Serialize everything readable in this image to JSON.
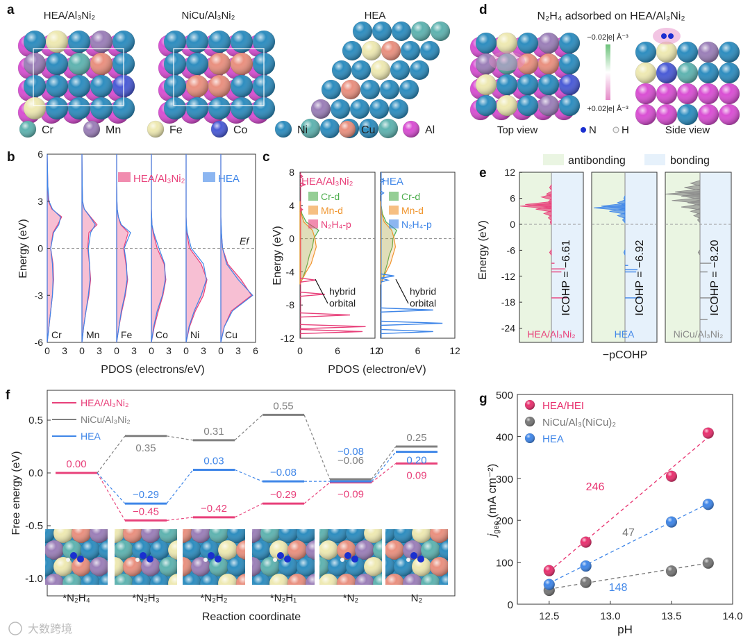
{
  "panel_labels": {
    "a": "a",
    "b": "b",
    "c": "c",
    "d": "d",
    "e": "e",
    "f": "f",
    "g": "g"
  },
  "panel_a": {
    "titles": [
      "HEA/Al₃Ni₂",
      "NiCu/Al₃Ni₂",
      "HEA"
    ],
    "legend": [
      {
        "label": "Cr",
        "color": "#5fb3b0"
      },
      {
        "label": "Mn",
        "color": "#9b7fb8"
      },
      {
        "label": "Fe",
        "color": "#eee9b2"
      },
      {
        "label": "Co",
        "color": "#4a5bd6"
      },
      {
        "label": "Ni",
        "color": "#2e8dbf"
      },
      {
        "label": "Cu",
        "color": "#e9907f"
      },
      {
        "label": "Al",
        "color": "#d94fd3"
      }
    ]
  },
  "panel_d": {
    "title": "N₂H₄ adsorbed on HEA/Al₃Ni₂",
    "scale_top": "−0.02|e| Å⁻³",
    "scale_bottom": "+0.02|e| Å⁻³",
    "top_view": "Top view",
    "side_view": "Side view",
    "legend": [
      {
        "label": "N",
        "color": "#1a2fd0"
      },
      {
        "label": "H",
        "color": "#f4f4f4"
      }
    ]
  },
  "chart_data": [
    {
      "id": "b",
      "type": "area",
      "ylabel": "Energy (eV)",
      "xlabel": "PDOS (electrons/eV)",
      "ylim": [
        -6,
        6
      ],
      "yticks": [
        "6",
        "3",
        "0",
        "-3",
        "-6"
      ],
      "xlim_per_panel": [
        0,
        6
      ],
      "xticks": [
        "0",
        "3"
      ],
      "xtick_end": "6",
      "fermi_label": "Ef",
      "legend": [
        "HEA/Al₃Ni₂",
        "HEA"
      ],
      "colors": {
        "HEA/Al₃Ni₂": "#e8407a",
        "HEA": "#3f86e8"
      },
      "energies": [
        -6,
        -5,
        -4,
        -3,
        -2,
        -1,
        0,
        1,
        1.5,
        2,
        2.5,
        3,
        4,
        6
      ],
      "panels": [
        {
          "element": "Cr",
          "HEA/Al₃Ni₂": [
            0,
            0.3,
            0.6,
            0.9,
            1.1,
            1.0,
            0.6,
            1.0,
            1.8,
            2.5,
            0.8,
            0.2,
            0.1,
            0
          ],
          "HEA": [
            0,
            0.3,
            0.6,
            0.9,
            1.0,
            0.9,
            0.6,
            1.1,
            2.0,
            2.3,
            0.9,
            0.3,
            0.1,
            0
          ]
        },
        {
          "element": "Mn",
          "HEA/Al₃Ni₂": [
            0,
            0.3,
            0.7,
            1.2,
            1.5,
            1.3,
            1.0,
            1.2,
            2.6,
            1.5,
            0.4,
            0.1,
            0.05,
            0
          ],
          "HEA": [
            0,
            0.3,
            0.7,
            1.1,
            1.4,
            1.3,
            1.1,
            1.5,
            2.3,
            1.4,
            0.4,
            0.1,
            0.05,
            0
          ]
        },
        {
          "element": "Fe",
          "HEA/Al₃Ni₂": [
            0,
            0.4,
            0.9,
            1.5,
            1.9,
            1.6,
            1.2,
            2.0,
            0.7,
            0.3,
            0.1,
            0.05,
            0,
            0
          ],
          "HEA": [
            0,
            0.4,
            0.8,
            1.4,
            1.8,
            1.7,
            1.3,
            2.4,
            0.8,
            0.3,
            0.1,
            0.05,
            0,
            0
          ]
        },
        {
          "element": "Co",
          "HEA/Al₃Ni₂": [
            0,
            0.5,
            1.2,
            2.0,
            2.5,
            2.2,
            1.0,
            0.3,
            0.1,
            0.05,
            0,
            0,
            0,
            0
          ],
          "HEA": [
            0,
            0.4,
            1.0,
            1.9,
            2.4,
            2.3,
            1.3,
            0.4,
            0.1,
            0.05,
            0,
            0,
            0,
            0
          ]
        },
        {
          "element": "Ni",
          "HEA/Al₃Ni₂": [
            0,
            0.6,
            1.6,
            3.0,
            3.6,
            2.6,
            0.6,
            0.1,
            0.05,
            0,
            0,
            0,
            0,
            0
          ],
          "HEA": [
            0,
            0.5,
            1.4,
            2.6,
            3.5,
            3.0,
            0.9,
            0.2,
            0.05,
            0,
            0,
            0,
            0,
            0
          ]
        },
        {
          "element": "Cu",
          "HEA/Al₃Ni₂": [
            0,
            0.6,
            1.8,
            5.3,
            3.5,
            1.2,
            0.3,
            0.1,
            0.05,
            0,
            0,
            0,
            0,
            0
          ],
          "HEA": [
            0,
            0.6,
            2.0,
            5.5,
            3.0,
            1.0,
            0.3,
            0.1,
            0.05,
            0,
            0,
            0,
            0,
            0
          ]
        }
      ]
    },
    {
      "id": "c",
      "type": "line",
      "ylabel": "Energy (eV)",
      "xlabel": "PDOS (electron/eV)",
      "ylim": [
        -12,
        8
      ],
      "yticks": [
        "8",
        "4",
        "0",
        "-4",
        "-8",
        "-12"
      ],
      "xlim": [
        0,
        12
      ],
      "xticks": [
        "0",
        "6",
        "12"
      ],
      "annotation": [
        "hybrid",
        "orbital"
      ],
      "envelope_energies": [
        -5,
        -4,
        -3,
        -2,
        -1,
        0,
        1,
        2,
        3,
        4
      ],
      "panels": [
        {
          "title": "HEA/Al₃Ni₂",
          "title_color": "#e8407a",
          "legend": [
            "Cr-d",
            "Mn-d",
            "N₂H₄-p"
          ],
          "Cr-d": [
            0.3,
            0.8,
            1.2,
            1.5,
            2.0,
            2.2,
            3.0,
            1.0,
            0.3,
            0.1
          ],
          "Mn-d": [
            0.3,
            1.0,
            1.8,
            2.2,
            2.6,
            2.4,
            2.0,
            0.6,
            0.2,
            0.1
          ],
          "N₂H₄-p_peaks": [
            [
              -11.2,
              10
            ],
            [
              -10.6,
              10.5
            ],
            [
              -9.2,
              8
            ],
            [
              -6.7,
              4
            ],
            [
              -5.0,
              2.5
            ],
            [
              3.5,
              0.4
            ],
            [
              6.5,
              0.8
            ],
            [
              7.5,
              0.4
            ]
          ],
          "p_color": "#e8407a"
        },
        {
          "title": "HEA",
          "title_color": "#3f86e8",
          "legend": [
            "Cr-d",
            "Mn-d",
            "N₂H₄-p"
          ],
          "Cr-d": [
            0.3,
            0.7,
            1.1,
            1.4,
            1.9,
            2.0,
            2.6,
            0.9,
            0.3,
            0.1
          ],
          "Mn-d": [
            0.3,
            0.9,
            1.6,
            2.0,
            2.4,
            2.2,
            1.8,
            0.6,
            0.2,
            0.1
          ],
          "N₂H₄-p_peaks": [
            [
              -11.2,
              8.5
            ],
            [
              -10.2,
              10
            ],
            [
              -8.6,
              8.5
            ],
            [
              -5.0,
              1.2
            ],
            [
              -4.5,
              2.2
            ],
            [
              5.5,
              0.5
            ],
            [
              7,
              0.6
            ]
          ],
          "p_color": "#3f86e8"
        }
      ],
      "colors": {
        "Cr-d": "#4fae4f",
        "Mn-d": "#f0952e"
      }
    },
    {
      "id": "e",
      "type": "bar",
      "ylabel": "Energy (eV)",
      "xlabel": "−pCOHP",
      "ylim": [
        -27,
        12
      ],
      "yticks": [
        "12",
        "6",
        "0",
        "-6",
        "-12",
        "-18",
        "-24"
      ],
      "legend": [
        "antibonding",
        "bonding"
      ],
      "legend_colors": {
        "antibonding": "#eaf5e2",
        "bonding": "#e6f1fb"
      },
      "panels": [
        {
          "name": "HEA/Al₃Ni₂",
          "color": "#e8407a",
          "icohp": "ICOHP = −6.61",
          "bars": [
            [
              8.5,
              -0.3
            ],
            [
              7,
              -0.8
            ],
            [
              6.3,
              -1.6
            ],
            [
              5.2,
              -0.5
            ],
            [
              4.6,
              -4.2
            ],
            [
              4.2,
              -5.0
            ],
            [
              3.5,
              -2.5
            ],
            [
              2.5,
              -1.2
            ],
            [
              1.5,
              -0.5
            ],
            [
              0.5,
              -0.2
            ],
            [
              -6.5,
              -0.3
            ],
            [
              -9,
              0.5
            ],
            [
              -10.3,
              2.2
            ],
            [
              -11,
              1.6
            ],
            [
              -17,
              2.5
            ]
          ]
        },
        {
          "name": "HEA",
          "color": "#3f86e8",
          "icohp": "ICOHP = −6.92",
          "bars": [
            [
              6,
              -0.2
            ],
            [
              5,
              -1.2
            ],
            [
              4.2,
              -3.8
            ],
            [
              3.8,
              -5.0
            ],
            [
              3,
              -2.5
            ],
            [
              2,
              -1.2
            ],
            [
              1,
              -0.4
            ],
            [
              -6.5,
              -0.2
            ],
            [
              -9.5,
              0.5
            ],
            [
              -10.5,
              2.0
            ],
            [
              -11,
              1.8
            ],
            [
              -17,
              2.5
            ]
          ]
        },
        {
          "name": "NiCu/Al₃Ni₂",
          "color": "#8a8a8a",
          "icohp": "ICOHP = −8.20",
          "bars": [
            [
              9.5,
              -1.5
            ],
            [
              8.5,
              -2.5
            ],
            [
              7.5,
              -4
            ],
            [
              7,
              -5.5
            ],
            [
              6.5,
              -3
            ],
            [
              5.5,
              -4.5
            ],
            [
              5,
              -2
            ],
            [
              4,
              -3
            ],
            [
              3,
              -1.5
            ],
            [
              2,
              -1
            ],
            [
              1,
              -0.4
            ],
            [
              -6.5,
              -0.3
            ],
            [
              -9,
              1.8
            ],
            [
              -11,
              1.2
            ],
            [
              -17,
              2.5
            ],
            [
              -22,
              1.2
            ]
          ]
        }
      ]
    },
    {
      "id": "f",
      "type": "line",
      "ylabel": "Free energy (eV)",
      "xlabel": "Reaction coordinate",
      "ylim": [
        -1.18,
        0.78
      ],
      "yticks": [
        "0.5",
        "0.0",
        "-0.5",
        "-1.0"
      ],
      "ytick_values": [
        0.5,
        0.0,
        -0.5,
        -1.0
      ],
      "categories": [
        "*N₂H₄",
        "*N₂H₃",
        "*N₂H₂",
        "*N₂H₁",
        "*N₂",
        "N₂"
      ],
      "series": [
        {
          "name": "HEA/Al₃Ni₂",
          "color": "#e8407a",
          "values": [
            0.0,
            -0.45,
            -0.42,
            -0.29,
            -0.09,
            0.09
          ],
          "labels": [
            "0.00",
            "−0.45",
            "−0.42",
            "−0.29",
            "−0.09",
            "0.09"
          ]
        },
        {
          "name": "NiCu/Al₃Ni₂",
          "color": "#808080",
          "values": [
            0.0,
            0.35,
            0.31,
            0.55,
            -0.06,
            0.25
          ],
          "labels": [
            "",
            "0.35",
            "0.31",
            "0.55",
            "−0.06",
            "0.25"
          ]
        },
        {
          "name": "HEA",
          "color": "#3f86e8",
          "values": [
            0.0,
            -0.29,
            0.03,
            -0.08,
            -0.08,
            0.2
          ],
          "labels": [
            "",
            "−0.29",
            "0.03",
            "−0.08",
            "−0.08",
            "0.20"
          ]
        }
      ]
    },
    {
      "id": "g",
      "type": "scatter",
      "ylabel": "jgeo (mA cm⁻²)",
      "ylabel_main": "j",
      "ylabel_sub": "geo",
      "ylabel_rest": " (mA cm⁻²)",
      "xlabel": "pH",
      "xlim": [
        12.24,
        14.0
      ],
      "ylim": [
        0,
        500
      ],
      "xticks": [
        "12.5",
        "13.0",
        "13.5",
        "14.0"
      ],
      "xtick_values": [
        12.5,
        13.0,
        13.5,
        14.0
      ],
      "yticks": [
        "0",
        "100",
        "200",
        "300",
        "400",
        "500"
      ],
      "ytick_values": [
        0,
        100,
        200,
        300,
        400,
        500
      ],
      "series": [
        {
          "name": "HEA/HEI",
          "color": "#e8306e",
          "x": [
            12.5,
            12.8,
            13.5,
            13.8
          ],
          "y": [
            80,
            148,
            305,
            408
          ],
          "slope_label": "246",
          "fit": [
            [
              12.5,
              78
            ],
            [
              13.8,
              398
            ]
          ]
        },
        {
          "name": "NiCu/Al₃(NiCu)₂",
          "color": "#777777",
          "x": [
            12.5,
            12.8,
            13.5,
            13.8
          ],
          "y": [
            33,
            52,
            79,
            98
          ],
          "slope_label": "47",
          "fit": [
            [
              12.5,
              36
            ],
            [
              13.8,
              98
            ]
          ]
        },
        {
          "name": "HEA",
          "color": "#3f86e8",
          "x": [
            12.5,
            12.8,
            13.5,
            13.8
          ],
          "y": [
            47,
            91,
            196,
            238
          ],
          "slope_label": "148",
          "fit": [
            [
              12.5,
              50
            ],
            [
              13.8,
              240
            ]
          ]
        }
      ]
    }
  ],
  "watermark": "大数跨境"
}
